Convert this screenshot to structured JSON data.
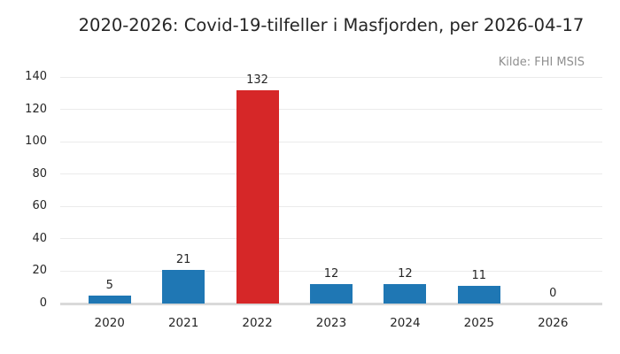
{
  "chart_data": {
    "type": "bar",
    "title": "2020-2026: Covid-19-tilfeller i Masfjorden, per 2026-04-17",
    "source_note": "Kilde: FHI MSIS",
    "categories": [
      "2020",
      "2021",
      "2022",
      "2023",
      "2024",
      "2025",
      "2026"
    ],
    "values": [
      5,
      21,
      132,
      12,
      12,
      11,
      0
    ],
    "bar_colors": [
      "#1f77b4",
      "#1f77b4",
      "#d62728",
      "#1f77b4",
      "#1f77b4",
      "#1f77b4",
      "#1f77b4"
    ],
    "highlight_index": 2,
    "xlabel": "",
    "ylabel": "",
    "ylim": [
      0,
      140
    ],
    "yticks": [
      0,
      20,
      40,
      60,
      80,
      100,
      120,
      140
    ],
    "grid": "horizontal-only",
    "legend": "none",
    "value_labels_shown": true,
    "colors": {
      "bar_default": "#1f77b4",
      "bar_highlight": "#d62728",
      "grid": "#ebebeb",
      "axis_line": "#d9d9d9",
      "text": "#262626",
      "muted_text": "#8f8f8f",
      "background": "#ffffff"
    }
  }
}
